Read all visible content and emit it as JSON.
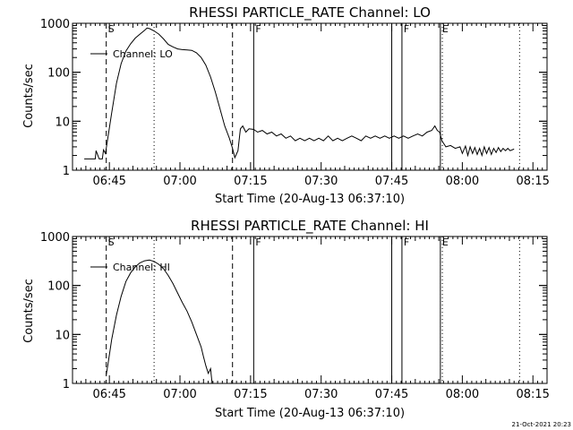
{
  "footer_timestamp": "21-Oct-2021 20:23",
  "chart_data": [
    {
      "type": "line",
      "title": "RHESSI PARTICLE_RATE Channel: LO",
      "xlabel": "Start Time (20-Aug-13 06:37:10)",
      "ylabel": "Counts/sec",
      "yscale": "log",
      "xlim": [
        "06:37:10",
        "08:18:00"
      ],
      "ylim": [
        1,
        1000
      ],
      "xticks": [
        "06:45",
        "07:00",
        "07:15",
        "07:30",
        "07:45",
        "08:00",
        "08:15"
      ],
      "yticks": [
        "1",
        "10",
        "100",
        "1000"
      ],
      "legend": "Channel: LO",
      "grid": false,
      "markers": {
        "dashed": [
          {
            "x": "06:44:20",
            "label": "S"
          },
          {
            "x": "07:11:10",
            "label": ""
          }
        ],
        "dotted": [
          {
            "x": "06:54:30",
            "label": ""
          },
          {
            "x": "07:55:45",
            "label": ""
          },
          {
            "x": "08:12:10",
            "label": ""
          }
        ],
        "solid": [
          {
            "x": "07:15:40",
            "label": "F"
          },
          {
            "x": "07:45:00",
            "label": ""
          },
          {
            "x": "07:47:10",
            "label": "F"
          },
          {
            "x": "07:55:20",
            "label": "E"
          }
        ]
      },
      "series": [
        {
          "values": [
            [
              "06:39:40",
              1.7
            ],
            [
              "06:41:00",
              1.7
            ],
            [
              "06:42:00",
              1.7
            ],
            [
              "06:42:10",
              2.5
            ],
            [
              "06:42:50",
              1.7
            ],
            [
              "06:43:30",
              1.7
            ],
            [
              "06:43:45",
              2.6
            ],
            [
              "06:44:10",
              2.2
            ],
            [
              "06:44:40",
              4.5
            ],
            [
              "06:45:30",
              15
            ],
            [
              "06:46:30",
              60
            ],
            [
              "06:47:30",
              150
            ],
            [
              "06:48:30",
              270
            ],
            [
              "06:49:30",
              380
            ],
            [
              "06:50:30",
              500
            ],
            [
              "06:51:30",
              600
            ],
            [
              "06:52:30",
              720
            ],
            [
              "06:53:00",
              800
            ],
            [
              "06:53:30",
              780
            ],
            [
              "06:54:30",
              700
            ],
            [
              "06:55:30",
              600
            ],
            [
              "06:56:30",
              480
            ],
            [
              "06:57:30",
              370
            ],
            [
              "06:58:30",
              330
            ],
            [
              "06:59:30",
              300
            ],
            [
              "07:00:30",
              290
            ],
            [
              "07:01:30",
              285
            ],
            [
              "07:02:30",
              280
            ],
            [
              "07:03:30",
              250
            ],
            [
              "07:04:30",
              200
            ],
            [
              "07:05:30",
              140
            ],
            [
              "07:06:30",
              80
            ],
            [
              "07:07:30",
              40
            ],
            [
              "07:08:30",
              18
            ],
            [
              "07:09:30",
              8
            ],
            [
              "07:10:30",
              4.5
            ],
            [
              "07:11:10",
              2.8
            ],
            [
              "07:11:40",
              1.8
            ],
            [
              "07:12:20",
              2.5
            ],
            [
              "07:12:50",
              7
            ],
            [
              "07:13:20",
              8
            ],
            [
              "07:14:00",
              6
            ],
            [
              "07:14:40",
              7
            ],
            [
              "07:15:40",
              6.8
            ],
            [
              "07:16:30",
              6
            ],
            [
              "07:17:30",
              6.5
            ],
            [
              "07:18:30",
              5.5
            ],
            [
              "07:19:30",
              6
            ],
            [
              "07:20:30",
              5
            ],
            [
              "07:21:30",
              5.5
            ],
            [
              "07:22:30",
              4.5
            ],
            [
              "07:23:30",
              5
            ],
            [
              "07:24:30",
              4
            ],
            [
              "07:25:30",
              4.5
            ],
            [
              "07:26:30",
              4
            ],
            [
              "07:27:30",
              4.5
            ],
            [
              "07:28:30",
              4
            ],
            [
              "07:29:30",
              4.5
            ],
            [
              "07:30:30",
              4
            ],
            [
              "07:31:30",
              5
            ],
            [
              "07:32:30",
              4
            ],
            [
              "07:33:30",
              4.5
            ],
            [
              "07:34:30",
              4
            ],
            [
              "07:35:30",
              4.5
            ],
            [
              "07:36:30",
              5
            ],
            [
              "07:37:30",
              4.5
            ],
            [
              "07:38:30",
              4
            ],
            [
              "07:39:30",
              5
            ],
            [
              "07:40:30",
              4.5
            ],
            [
              "07:41:30",
              5
            ],
            [
              "07:42:30",
              4.5
            ],
            [
              "07:43:30",
              5
            ],
            [
              "07:44:30",
              4.5
            ],
            [
              "07:45:30",
              5
            ],
            [
              "07:46:30",
              4.5
            ],
            [
              "07:47:30",
              5
            ],
            [
              "07:48:30",
              4.5
            ],
            [
              "07:49:30",
              5
            ],
            [
              "07:50:30",
              5.5
            ],
            [
              "07:51:30",
              5
            ],
            [
              "07:52:30",
              6
            ],
            [
              "07:53:30",
              6.5
            ],
            [
              "07:54:10",
              8
            ],
            [
              "07:54:40",
              6.5
            ],
            [
              "07:55:10",
              6
            ],
            [
              "07:55:40",
              4
            ],
            [
              "07:56:30",
              3
            ],
            [
              "07:57:30",
              3.2
            ],
            [
              "07:58:30",
              2.8
            ],
            [
              "07:59:30",
              3
            ],
            [
              "08:00:00",
              2.2
            ],
            [
              "08:00:40",
              3.1
            ],
            [
              "08:01:10",
              2
            ],
            [
              "08:01:40",
              3
            ],
            [
              "08:02:10",
              2.2
            ],
            [
              "08:02:40",
              2.9
            ],
            [
              "08:03:10",
              2.1
            ],
            [
              "08:03:40",
              2.8
            ],
            [
              "08:04:10",
              2
            ],
            [
              "08:04:40",
              3
            ],
            [
              "08:05:10",
              2.2
            ],
            [
              "08:05:40",
              2.9
            ],
            [
              "08:06:10",
              2.1
            ],
            [
              "08:06:40",
              2.8
            ],
            [
              "08:07:10",
              2.3
            ],
            [
              "08:07:40",
              2.9
            ],
            [
              "08:08:10",
              2.4
            ],
            [
              "08:08:40",
              2.8
            ],
            [
              "08:09:10",
              2.5
            ],
            [
              "08:09:40",
              2.8
            ],
            [
              "08:10:10",
              2.5
            ],
            [
              "08:11:00",
              2.7
            ]
          ]
        }
      ]
    },
    {
      "type": "line",
      "title": "RHESSI PARTICLE_RATE Channel: HI",
      "xlabel": "Start Time (20-Aug-13 06:37:10)",
      "ylabel": "Counts/sec",
      "yscale": "log",
      "xlim": [
        "06:37:10",
        "08:18:00"
      ],
      "ylim": [
        1,
        1000
      ],
      "xticks": [
        "06:45",
        "07:00",
        "07:15",
        "07:30",
        "07:45",
        "08:00",
        "08:15"
      ],
      "yticks": [
        "1",
        "10",
        "100",
        "1000"
      ],
      "legend": "Channel: HI",
      "grid": false,
      "markers": {
        "dashed": [
          {
            "x": "06:44:20",
            "label": "S"
          },
          {
            "x": "07:11:10",
            "label": ""
          }
        ],
        "dotted": [
          {
            "x": "06:54:30",
            "label": ""
          },
          {
            "x": "07:55:45",
            "label": ""
          },
          {
            "x": "08:12:10",
            "label": ""
          }
        ],
        "solid": [
          {
            "x": "07:15:40",
            "label": "F"
          },
          {
            "x": "07:45:00",
            "label": ""
          },
          {
            "x": "07:47:10",
            "label": "F"
          },
          {
            "x": "07:55:20",
            "label": "E"
          }
        ]
      },
      "series": [
        {
          "values": [
            [
              "06:44:20",
              1.5
            ],
            [
              "06:44:50",
              3
            ],
            [
              "06:45:30",
              8
            ],
            [
              "06:46:30",
              25
            ],
            [
              "06:47:30",
              60
            ],
            [
              "06:48:30",
              120
            ],
            [
              "06:49:30",
              180
            ],
            [
              "06:50:30",
              240
            ],
            [
              "06:51:30",
              290
            ],
            [
              "06:52:30",
              320
            ],
            [
              "06:53:30",
              330
            ],
            [
              "06:54:30",
              310
            ],
            [
              "06:55:30",
              270
            ],
            [
              "06:56:30",
              220
            ],
            [
              "06:57:30",
              160
            ],
            [
              "06:58:30",
              110
            ],
            [
              "06:59:30",
              70
            ],
            [
              "07:00:30",
              45
            ],
            [
              "07:01:30",
              30
            ],
            [
              "07:02:30",
              18
            ],
            [
              "07:03:30",
              10
            ],
            [
              "07:04:30",
              5.5
            ],
            [
              "07:05:00",
              3.5
            ],
            [
              "07:05:30",
              2.3
            ],
            [
              "07:06:00",
              1.6
            ],
            [
              "07:06:30",
              2
            ],
            [
              "07:06:50",
              1
            ]
          ]
        }
      ]
    }
  ]
}
